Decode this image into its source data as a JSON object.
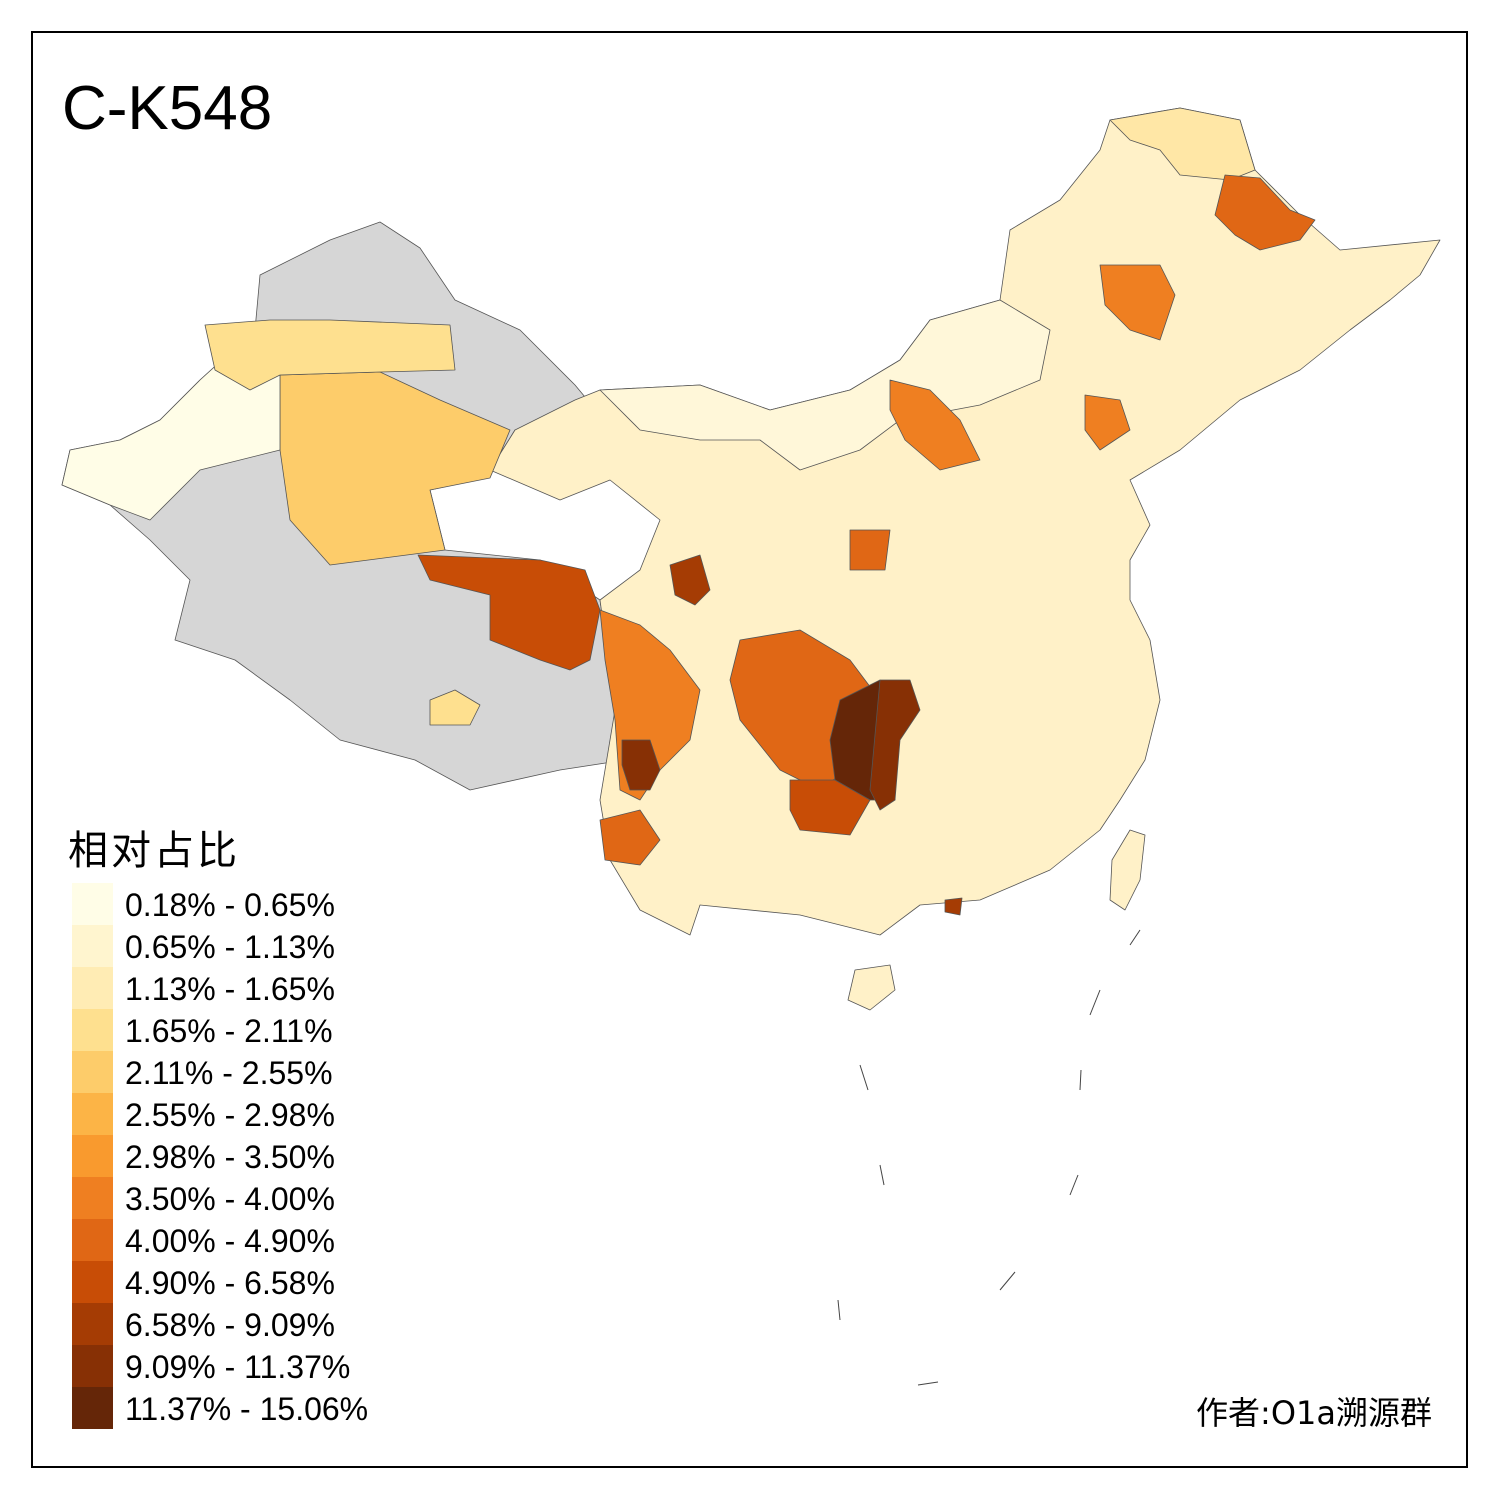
{
  "title": "C-K548",
  "legend": {
    "title": "相对占比",
    "bins": [
      {
        "label": "0.18% - 0.65%",
        "color": "#fffde7"
      },
      {
        "label": "0.65% - 1.13%",
        "color": "#fff5cf"
      },
      {
        "label": "1.13% - 1.65%",
        "color": "#ffecb4"
      },
      {
        "label": "1.65% - 2.11%",
        "color": "#fee08f"
      },
      {
        "label": "2.11% - 2.55%",
        "color": "#fdcc6a"
      },
      {
        "label": "2.55% - 2.98%",
        "color": "#fcb446"
      },
      {
        "label": "2.98% - 3.50%",
        "color": "#f99a2e"
      },
      {
        "label": "3.50% - 4.00%",
        "color": "#ef7f21"
      },
      {
        "label": "4.00% - 4.90%",
        "color": "#e06715"
      },
      {
        "label": "4.90% - 6.58%",
        "color": "#c84d06"
      },
      {
        "label": "6.58% - 9.09%",
        "color": "#a53c04"
      },
      {
        "label": "9.09% - 11.37%",
        "color": "#873005"
      },
      {
        "label": "11.37% - 15.06%",
        "color": "#652608"
      }
    ],
    "no_data_color": "#d6d6d6"
  },
  "credit": "作者:O1a溯源群"
}
